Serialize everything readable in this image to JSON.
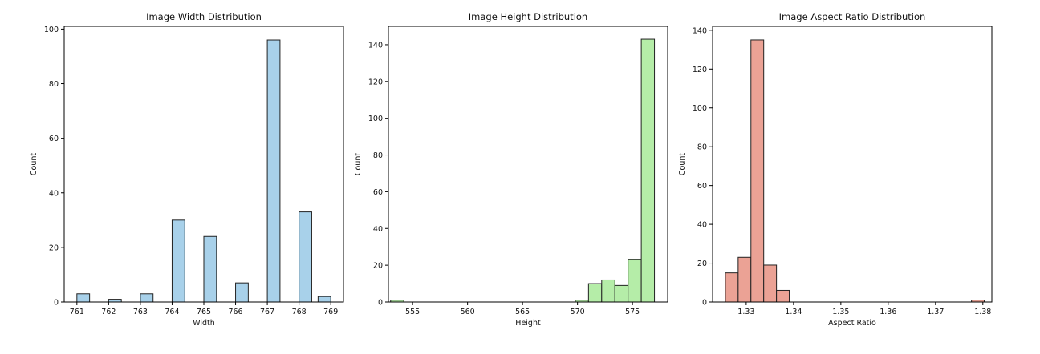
{
  "chart_data": [
    {
      "type": "bar",
      "title": "Image Width Distribution",
      "xlabel": "Width",
      "ylabel": "Count",
      "xlim": [
        760.6,
        769.4
      ],
      "ylim": [
        0,
        101
      ],
      "xticks": [
        "761",
        "762",
        "763",
        "764",
        "765",
        "766",
        "767",
        "768",
        "769"
      ],
      "xtick_values": [
        761,
        762,
        763,
        764,
        765,
        766,
        767,
        768,
        769
      ],
      "yticks": [
        "0",
        "20",
        "40",
        "60",
        "80",
        "100"
      ],
      "ytick_values": [
        0,
        20,
        40,
        60,
        80,
        100
      ],
      "bar_width": 0.4,
      "bar_color": "#a8d1ea",
      "edge_color": "#222222",
      "bars": [
        {
          "x0": 761.0,
          "count": 3
        },
        {
          "x0": 762.0,
          "count": 1
        },
        {
          "x0": 763.0,
          "count": 3
        },
        {
          "x0": 764.0,
          "count": 30
        },
        {
          "x0": 765.0,
          "count": 24
        },
        {
          "x0": 766.0,
          "count": 7
        },
        {
          "x0": 767.0,
          "count": 96
        },
        {
          "x0": 768.0,
          "count": 33
        },
        {
          "x0": 768.6,
          "count": 2
        }
      ]
    },
    {
      "type": "bar",
      "title": "Image Height Distribution",
      "xlabel": "Height",
      "ylabel": "Count",
      "xlim": [
        552.8,
        578.2
      ],
      "ylim": [
        0,
        150
      ],
      "xticks": [
        "555",
        "560",
        "565",
        "570",
        "575"
      ],
      "xtick_values": [
        555,
        560,
        565,
        570,
        575
      ],
      "yticks": [
        "0",
        "20",
        "40",
        "60",
        "80",
        "100",
        "120",
        "140"
      ],
      "ytick_values": [
        0,
        20,
        40,
        60,
        80,
        100,
        120,
        140
      ],
      "bar_width": 1.2,
      "bar_color": "#b5eda8",
      "edge_color": "#222222",
      "bars": [
        {
          "x0": 553.0,
          "count": 1
        },
        {
          "x0": 569.8,
          "count": 1
        },
        {
          "x0": 571.0,
          "count": 10
        },
        {
          "x0": 572.2,
          "count": 12
        },
        {
          "x0": 573.4,
          "count": 9
        },
        {
          "x0": 574.6,
          "count": 23
        },
        {
          "x0": 575.8,
          "count": 143
        }
      ]
    },
    {
      "type": "bar",
      "title": "Image Aspect Ratio Distribution",
      "xlabel": "Aspect Ratio",
      "ylabel": "Count",
      "xlim": [
        1.3229,
        1.3819
      ],
      "ylim": [
        0,
        142
      ],
      "xticks": [
        "1.33",
        "1.34",
        "1.35",
        "1.36",
        "1.37",
        "1.38"
      ],
      "xtick_values": [
        1.33,
        1.34,
        1.35,
        1.36,
        1.37,
        1.38
      ],
      "yticks": [
        "0",
        "20",
        "40",
        "60",
        "80",
        "100",
        "120",
        "140"
      ],
      "ytick_values": [
        0,
        20,
        40,
        60,
        80,
        100,
        120,
        140
      ],
      "bar_width": 0.0027,
      "bar_color": "#eba295",
      "edge_color": "#222222",
      "bars": [
        {
          "x0": 1.3256,
          "count": 15
        },
        {
          "x0": 1.3283,
          "count": 23
        },
        {
          "x0": 1.331,
          "count": 135
        },
        {
          "x0": 1.3337,
          "count": 19
        },
        {
          "x0": 1.3364,
          "count": 6
        },
        {
          "x0": 1.3776,
          "count": 1
        }
      ]
    }
  ]
}
